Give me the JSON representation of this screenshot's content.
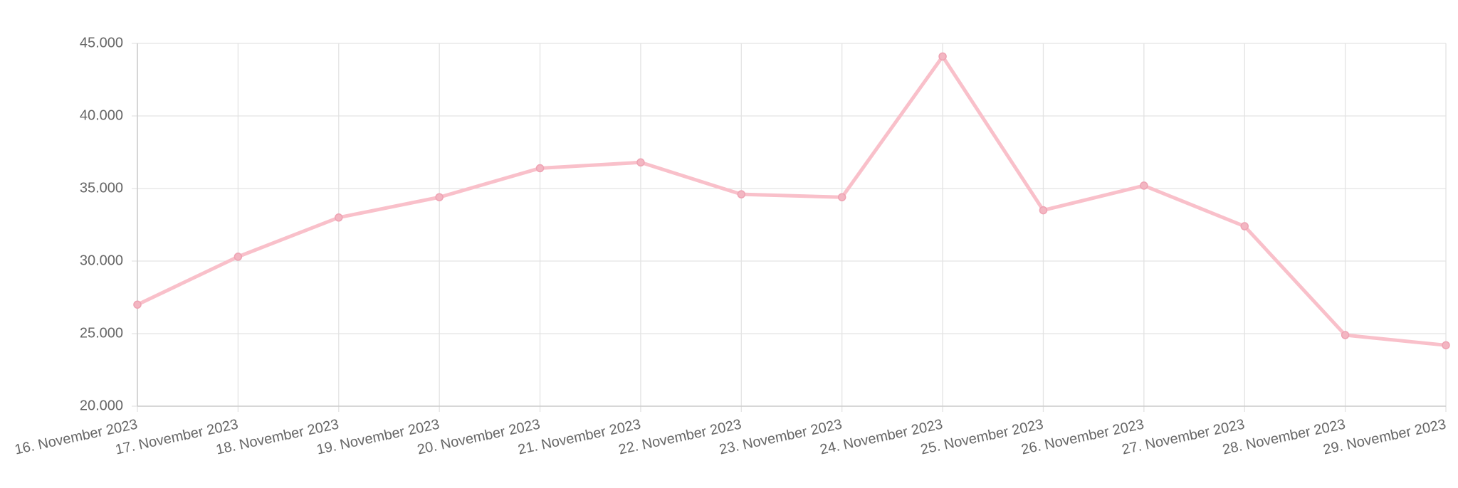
{
  "chart_data": {
    "type": "line",
    "categories": [
      "16. November 2023",
      "17. November 2023",
      "18. November 2023",
      "19. November 2023",
      "20. November 2023",
      "21. November 2023",
      "22. November 2023",
      "23. November 2023",
      "24. November 2023",
      "25. November 2023",
      "26. November 2023",
      "27. November 2023",
      "28. November 2023",
      "29. November 2023"
    ],
    "values": [
      27000,
      30300,
      33000,
      34400,
      36400,
      36800,
      34600,
      34400,
      44100,
      33500,
      35200,
      32400,
      24900,
      24200
    ],
    "color": "#f9c0ca",
    "ylim": [
      20000,
      45000
    ],
    "yticks": [
      {
        "value": 20000,
        "label": "20.000"
      },
      {
        "value": 25000,
        "label": "25.000"
      },
      {
        "value": 30000,
        "label": "30.000"
      },
      {
        "value": 35000,
        "label": "35.000"
      },
      {
        "value": 40000,
        "label": "40.000"
      },
      {
        "value": 45000,
        "label": "45.000"
      }
    ],
    "grid": true
  }
}
